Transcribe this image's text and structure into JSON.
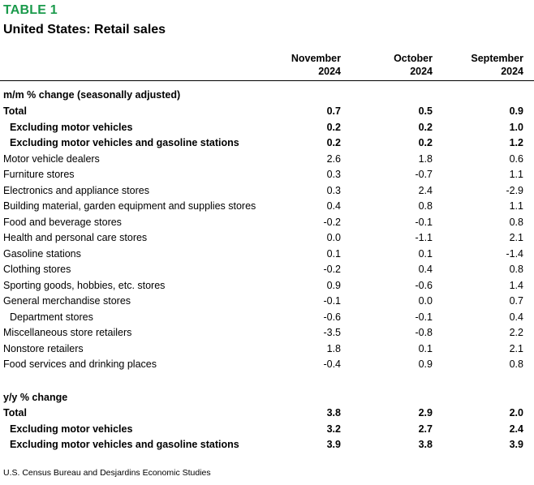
{
  "table_label": "TABLE 1",
  "title": "United States: Retail sales",
  "columns": [
    {
      "month": "November",
      "year": "2024"
    },
    {
      "month": "October",
      "year": "2024"
    },
    {
      "month": "September",
      "year": "2024"
    }
  ],
  "section1": {
    "heading": "m/m % change (seasonally adjusted)",
    "rows": [
      {
        "label": "Total",
        "values": [
          "0.7",
          "0.5",
          "0.9"
        ],
        "bold": true,
        "indent": false
      },
      {
        "label": "Excluding motor vehicles",
        "values": [
          "0.2",
          "0.2",
          "1.0"
        ],
        "bold": true,
        "indent": true
      },
      {
        "label": "Excluding motor vehicles and gasoline stations",
        "values": [
          "0.2",
          "0.2",
          "1.2"
        ],
        "bold": true,
        "indent": true
      },
      {
        "label": "Motor vehicle dealers",
        "values": [
          "2.6",
          "1.8",
          "0.6"
        ],
        "bold": false,
        "indent": false
      },
      {
        "label": "Furniture stores",
        "values": [
          "0.3",
          "-0.7",
          "1.1"
        ],
        "bold": false,
        "indent": false
      },
      {
        "label": "Electronics and appliance stores",
        "values": [
          "0.3",
          "2.4",
          "-2.9"
        ],
        "bold": false,
        "indent": false
      },
      {
        "label": "Building material, garden equipment and supplies stores",
        "values": [
          "0.4",
          "0.8",
          "1.1"
        ],
        "bold": false,
        "indent": false
      },
      {
        "label": "Food and beverage stores",
        "values": [
          "-0.2",
          "-0.1",
          "0.8"
        ],
        "bold": false,
        "indent": false
      },
      {
        "label": "Health and personal care stores",
        "values": [
          "0.0",
          "-1.1",
          "2.1"
        ],
        "bold": false,
        "indent": false
      },
      {
        "label": "Gasoline stations",
        "values": [
          "0.1",
          "0.1",
          "-1.4"
        ],
        "bold": false,
        "indent": false
      },
      {
        "label": "Clothing stores",
        "values": [
          "-0.2",
          "0.4",
          "0.8"
        ],
        "bold": false,
        "indent": false
      },
      {
        "label": "Sporting goods, hobbies, etc. stores",
        "values": [
          "0.9",
          "-0.6",
          "1.4"
        ],
        "bold": false,
        "indent": false
      },
      {
        "label": "General merchandise stores",
        "values": [
          "-0.1",
          "0.0",
          "0.7"
        ],
        "bold": false,
        "indent": false
      },
      {
        "label": "Department stores",
        "values": [
          "-0.6",
          "-0.1",
          "0.4"
        ],
        "bold": false,
        "indent": true
      },
      {
        "label": "Miscellaneous store retailers",
        "values": [
          "-3.5",
          "-0.8",
          "2.2"
        ],
        "bold": false,
        "indent": false
      },
      {
        "label": "Nonstore retailers",
        "values": [
          "1.8",
          "0.1",
          "2.1"
        ],
        "bold": false,
        "indent": false
      },
      {
        "label": "Food services and drinking places",
        "values": [
          "-0.4",
          "0.9",
          "0.8"
        ],
        "bold": false,
        "indent": false
      }
    ]
  },
  "section2": {
    "heading": "y/y % change",
    "rows": [
      {
        "label": "Total",
        "values": [
          "3.8",
          "2.9",
          "2.0"
        ],
        "bold": true,
        "indent": false
      },
      {
        "label": "Excluding motor vehicles",
        "values": [
          "3.2",
          "2.7",
          "2.4"
        ],
        "bold": true,
        "indent": true
      },
      {
        "label": "Excluding motor vehicles and gasoline stations",
        "values": [
          "3.9",
          "3.8",
          "3.9"
        ],
        "bold": true,
        "indent": true
      }
    ]
  },
  "source": "U.S. Census Bureau and Desjardins Economic Studies",
  "colors": {
    "label_green": "#1a9a4b",
    "text": "#000000",
    "background": "#ffffff"
  }
}
